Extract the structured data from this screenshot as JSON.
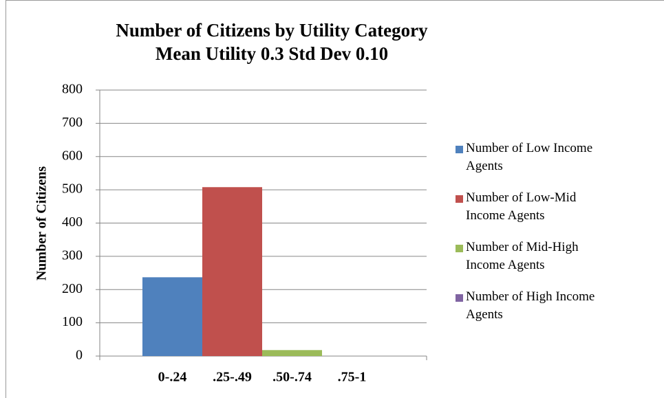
{
  "chart_data": {
    "type": "bar",
    "title": "Number of Citizens by Utility Category",
    "subtitle": "Mean Utility 0.3 Std Dev 0.10",
    "y_label": "Number of Citizens",
    "categories": [
      "0-.24",
      ".25-.49",
      ".50-.74",
      ".75-1"
    ],
    "series": [
      {
        "name": "Number of Low Income Agents",
        "color": "#4f81bd",
        "values": [
          237,
          null,
          null,
          null
        ]
      },
      {
        "name": "Number of Low-Mid Income Agents",
        "color": "#c0504d",
        "values": [
          null,
          508,
          null,
          null
        ]
      },
      {
        "name": "Number of Mid-High Income Agents",
        "color": "#9bbb59",
        "values": [
          null,
          null,
          18,
          null
        ]
      },
      {
        "name": "Number of High Income Agents",
        "color": "#8064a2",
        "values": [
          null,
          null,
          null,
          0
        ]
      }
    ],
    "ylim": [
      0,
      800
    ],
    "yticks": [
      0,
      100,
      200,
      300,
      400,
      500,
      600,
      700,
      800
    ],
    "grid": true,
    "legend": "right"
  }
}
